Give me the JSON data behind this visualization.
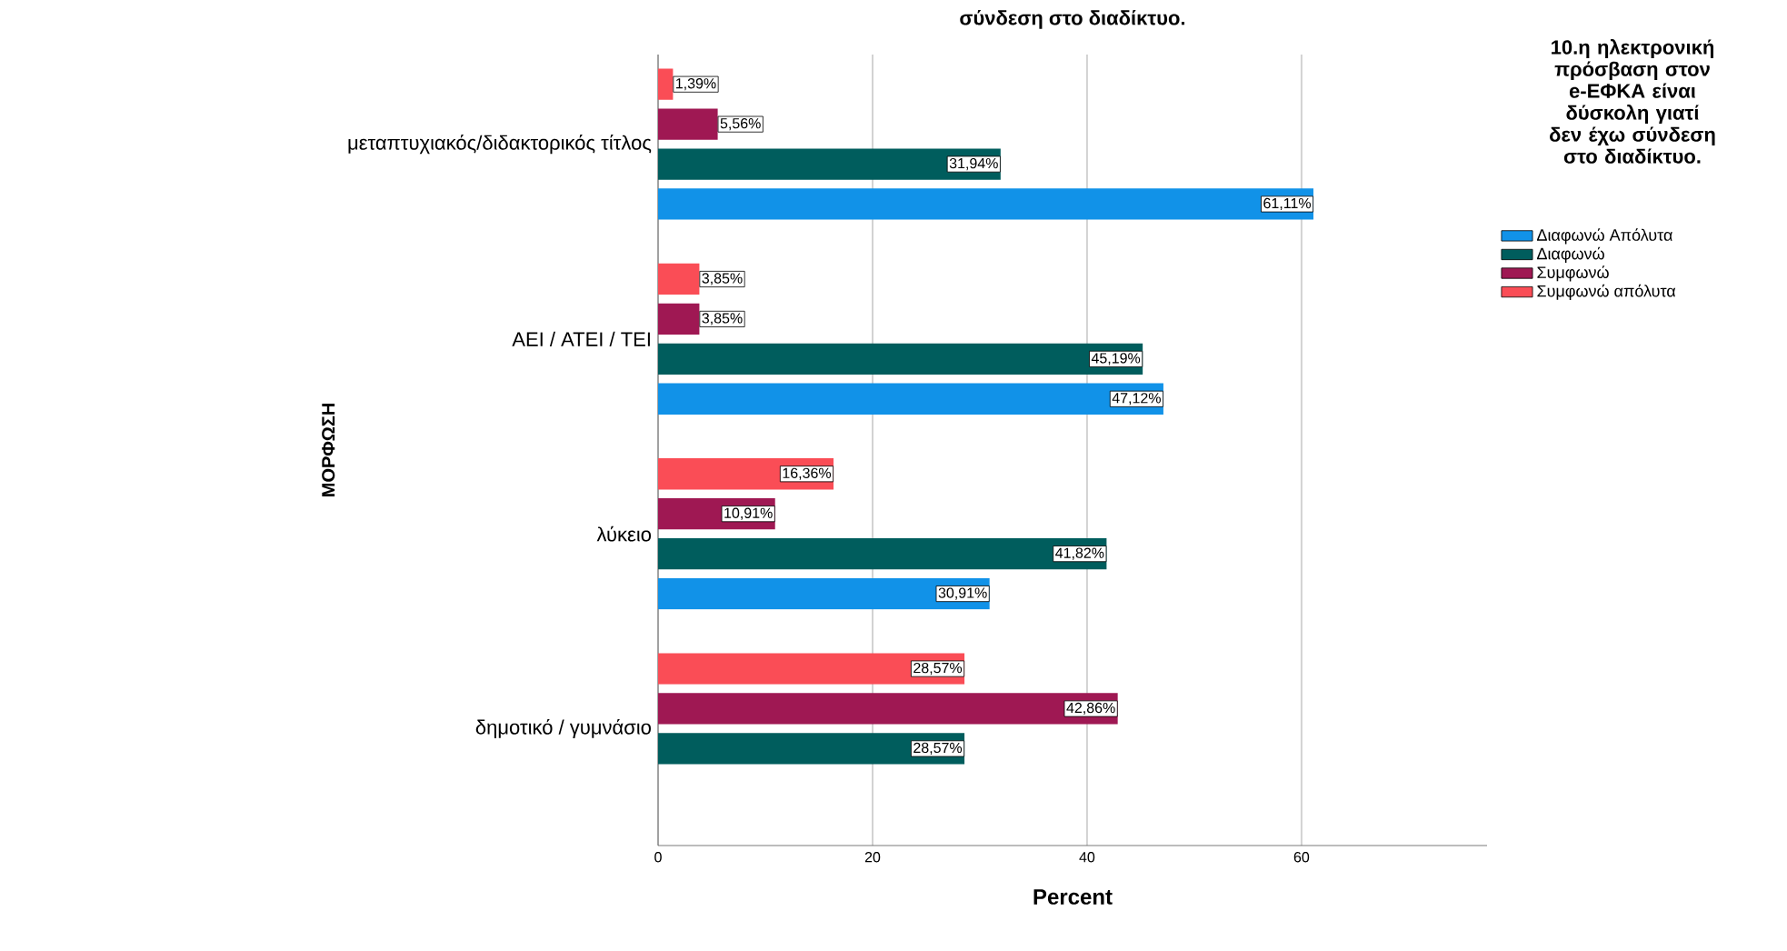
{
  "chart_data": {
    "type": "bar",
    "orientation": "horizontal",
    "title": "σύνδεση στο διαδίκτυο.",
    "xlabel": "Percent",
    "ylabel": "ΜΟΡΦΩΣΗ",
    "legend_title": "10.η ηλεκτρονική πρόσβαση στον e-ΕΦΚΑ είναι δύσκολη γιατί δεν έχω σύνδεση στο διαδίκτυο.",
    "categories": [
      "μεταπτυχιακός/διδακτορικός τίτλος",
      "ΑΕΙ / ΑΤΕΙ / ΤΕΙ",
      "λύκειο",
      "δημοτικό / γυμνάσιο"
    ],
    "series": [
      {
        "name": "Διαφωνώ Απόλυτα",
        "color": "#1192e8",
        "values": [
          61.11,
          47.12,
          30.91,
          null
        ],
        "value_labels": [
          "61,11%",
          "47,12%",
          "30,91%",
          null
        ]
      },
      {
        "name": "Διαφωνώ",
        "color": "#005d5d",
        "values": [
          31.94,
          45.19,
          41.82,
          28.57
        ],
        "value_labels": [
          "31,94%",
          "45,19%",
          "41,82%",
          "28,57%"
        ]
      },
      {
        "name": "Συμφωνώ",
        "color": "#9f1853",
        "values": [
          5.56,
          3.85,
          10.91,
          42.86
        ],
        "value_labels": [
          "5,56%",
          "3,85%",
          "10,91%",
          "42,86%"
        ]
      },
      {
        "name": "Συμφωνώ απόλυτα",
        "color": "#fa4d56",
        "values": [
          1.39,
          3.85,
          16.36,
          28.57
        ],
        "value_labels": [
          "1,39%",
          "3,85%",
          "16,36%",
          "28,57%"
        ]
      }
    ],
    "xlim": [
      0,
      77.3
    ],
    "xticks": [
      0,
      20,
      40,
      60
    ],
    "grid": "x",
    "legend": "right"
  }
}
